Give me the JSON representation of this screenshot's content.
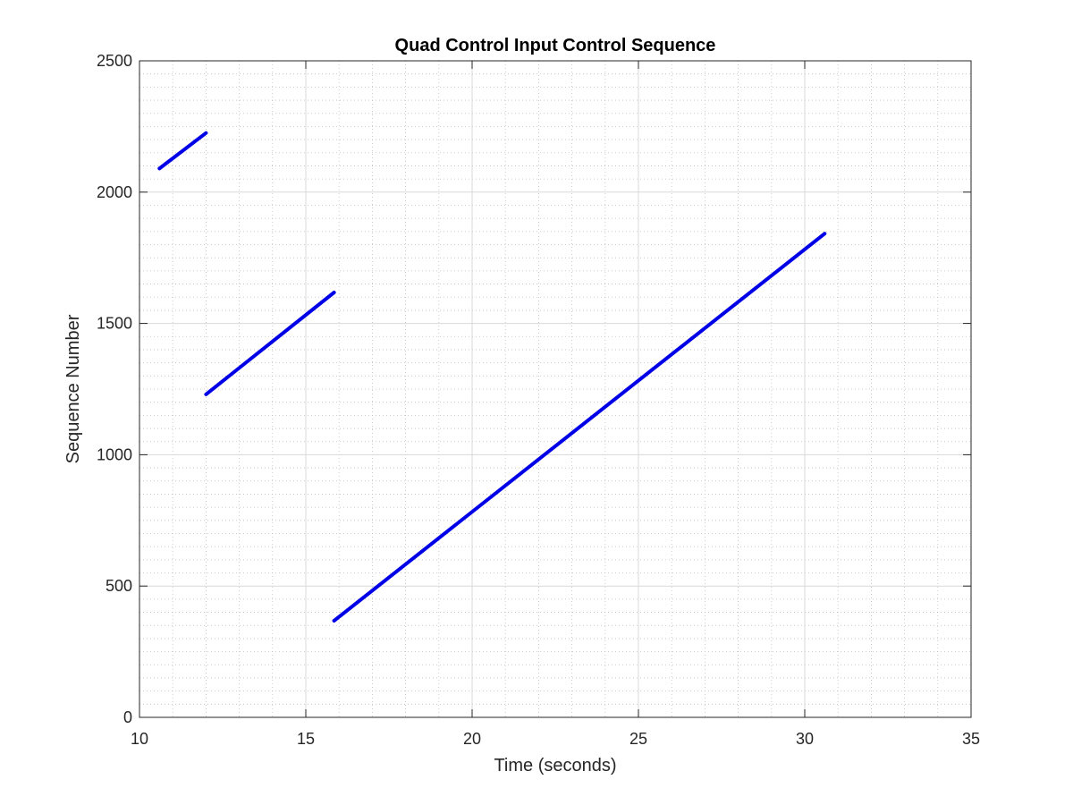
{
  "chart_data": {
    "type": "line",
    "title": "Quad Control Input Control Sequence",
    "xlabel": "Time (seconds)",
    "ylabel": "Sequence Number",
    "xlim": [
      10,
      35
    ],
    "ylim": [
      0,
      2500
    ],
    "xticks": [
      "10",
      "15",
      "20",
      "25",
      "30",
      "35"
    ],
    "yticks": [
      "0",
      "500",
      "1000",
      "1500",
      "2000",
      "2500"
    ],
    "grid": true,
    "minor_grid": true,
    "series_color": "#0000e6",
    "segments": [
      {
        "x": [
          10.6,
          12.0
        ],
        "y": [
          2090,
          2225
        ]
      },
      {
        "x": [
          12.0,
          15.85
        ],
        "y": [
          1230,
          1618
        ]
      },
      {
        "x": [
          15.85,
          30.6
        ],
        "y": [
          368,
          1842
        ]
      }
    ]
  }
}
